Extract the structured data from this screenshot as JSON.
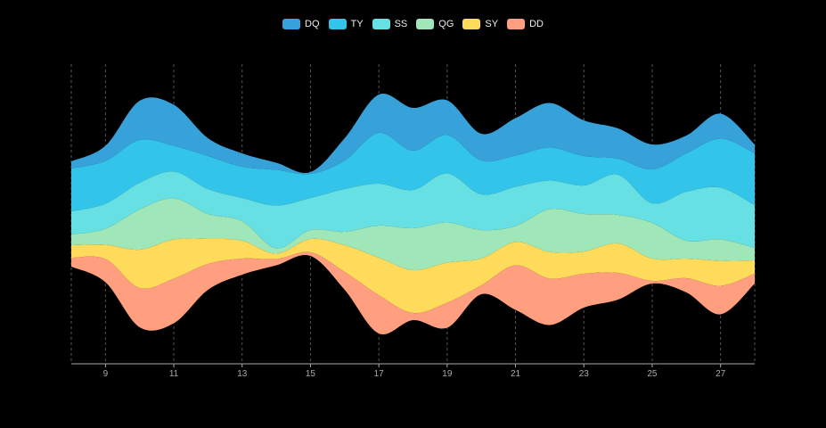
{
  "chart_data": {
    "type": "area",
    "subtype": "streamgraph",
    "x": [
      8,
      9,
      10,
      11,
      12,
      13,
      14,
      15,
      16,
      17,
      18,
      19,
      20,
      21,
      22,
      23,
      24,
      25,
      26,
      27,
      28
    ],
    "xlim": [
      8,
      28
    ],
    "x_tick_labels": [
      "9",
      "11",
      "13",
      "15",
      "17",
      "19",
      "21",
      "23",
      "25",
      "27"
    ],
    "grid": "vertical dashed",
    "legend_position": "top-center",
    "series": [
      {
        "name": "DQ",
        "color": "#37a2da",
        "values": [
          8,
          17,
          44,
          46,
          20,
          15,
          8,
          2,
          25,
          43,
          48,
          39,
          30,
          42,
          50,
          40,
          34,
          28,
          20,
          28,
          10
        ]
      },
      {
        "name": "TY",
        "color": "#32c5e9",
        "values": [
          48,
          48,
          48,
          29,
          37,
          35,
          40,
          27,
          32,
          57,
          44,
          43,
          38,
          35,
          37,
          33,
          18,
          38,
          43,
          55,
          58
        ]
      },
      {
        "name": "SS",
        "color": "#67e0e3",
        "values": [
          26,
          28,
          30,
          30,
          28,
          26,
          48,
          36,
          48,
          47,
          43,
          55,
          40,
          44,
          32,
          32,
          45,
          22,
          55,
          58,
          48
        ]
      },
      {
        "name": "QG",
        "color": "#9fe6b8",
        "values": [
          12,
          18,
          45,
          46,
          28,
          22,
          6,
          10,
          15,
          36,
          47,
          45,
          32,
          18,
          48,
          42,
          32,
          40,
          20,
          24,
          14
        ]
      },
      {
        "name": "SY",
        "color": "#ffdb5c",
        "values": [
          14,
          16,
          43,
          44,
          28,
          20,
          6,
          15,
          30,
          42,
          48,
          45,
          30,
          26,
          30,
          25,
          33,
          25,
          22,
          28,
          15
        ]
      },
      {
        "name": "DD",
        "color": "#ff9f7f",
        "values": [
          10,
          26,
          44,
          50,
          29,
          18,
          7,
          4,
          20,
          43,
          8,
          28,
          10,
          50,
          52,
          38,
          30,
          3,
          16,
          32,
          11
        ]
      }
    ]
  }
}
